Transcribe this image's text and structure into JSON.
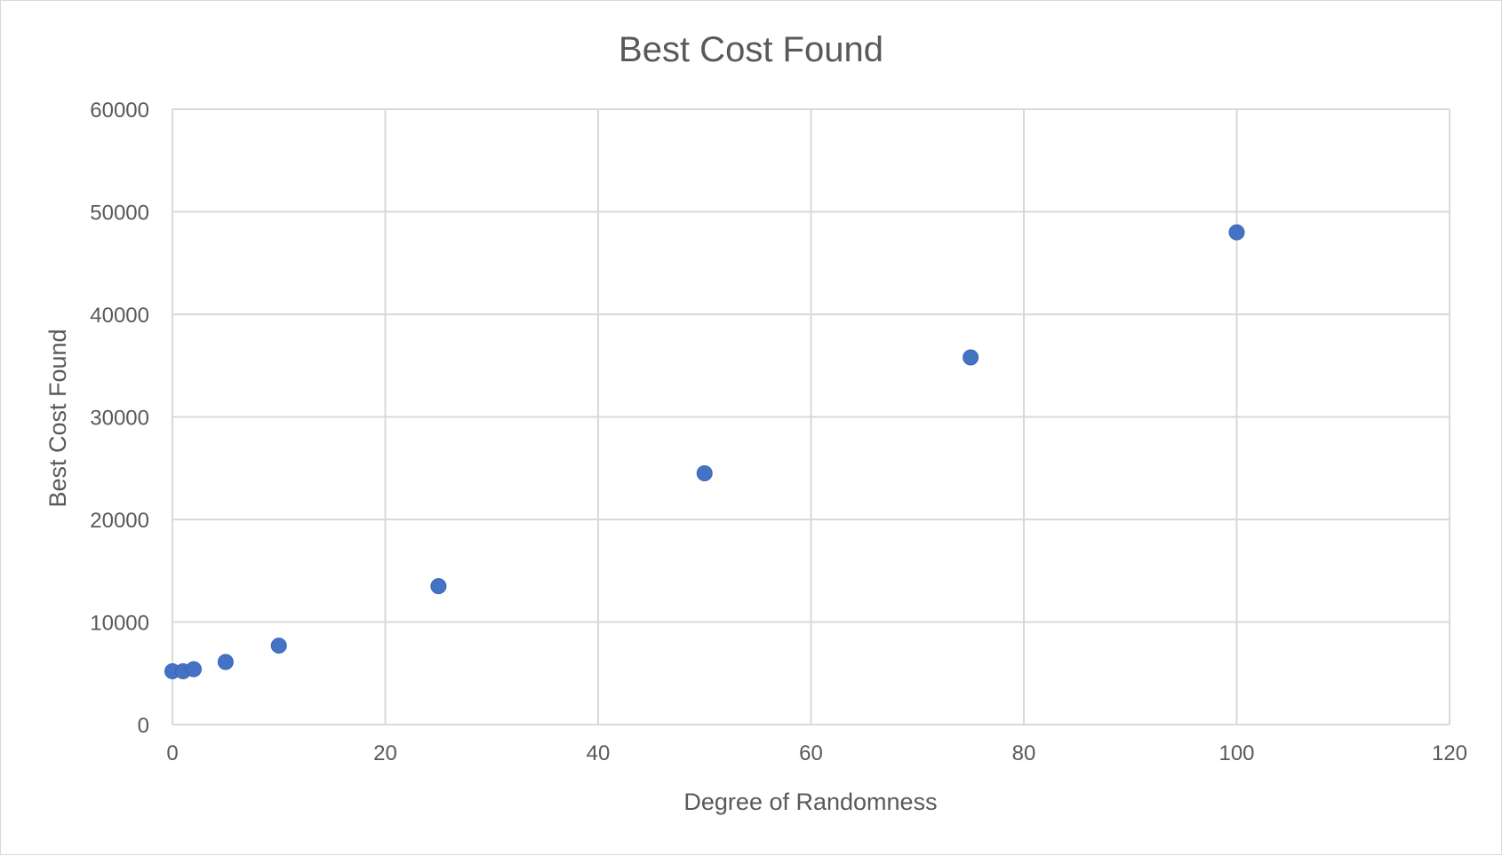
{
  "chart_data": {
    "type": "scatter",
    "title": "Best Cost Found",
    "xlabel": "Degree of Randomness",
    "ylabel": "Best Cost Found",
    "xlim": [
      0,
      120
    ],
    "ylim": [
      0,
      60000
    ],
    "xticks": [
      0,
      20,
      40,
      60,
      80,
      100,
      120
    ],
    "yticks": [
      0,
      10000,
      20000,
      30000,
      40000,
      50000,
      60000
    ],
    "grid": true,
    "legend": "none",
    "marker_color": "#4472C4",
    "series": [
      {
        "points": [
          {
            "x": 0,
            "y": 5200
          },
          {
            "x": 1,
            "y": 5200
          },
          {
            "x": 2,
            "y": 5400
          },
          {
            "x": 5,
            "y": 6100
          },
          {
            "x": 10,
            "y": 7700
          },
          {
            "x": 25,
            "y": 13500
          },
          {
            "x": 50,
            "y": 24500
          },
          {
            "x": 75,
            "y": 35800
          },
          {
            "x": 100,
            "y": 48000
          }
        ]
      }
    ]
  }
}
